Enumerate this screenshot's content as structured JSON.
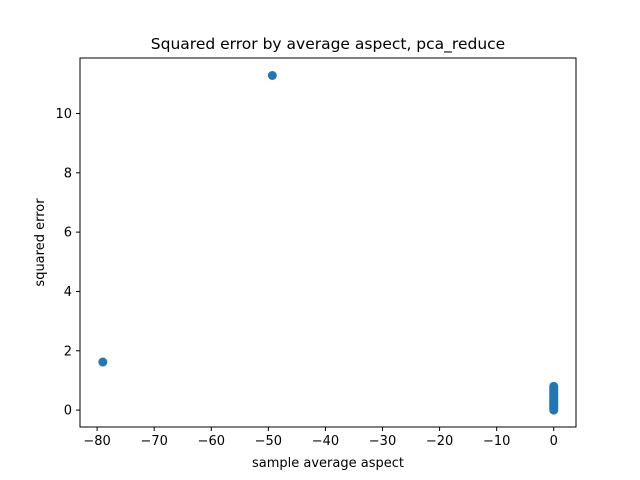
{
  "chart_data": {
    "type": "scatter",
    "title": "Squared error by average aspect, pca_reduce",
    "xlabel": "sample average aspect",
    "ylabel": "squared error",
    "xlim": [
      -83,
      3.9
    ],
    "ylim": [
      -0.57,
      11.87
    ],
    "xticks": [
      -80,
      -70,
      -60,
      -50,
      -40,
      -30,
      -20,
      -10,
      0
    ],
    "xtick_labels": [
      "−80",
      "−70",
      "−60",
      "−50",
      "−40",
      "−30",
      "−20",
      "−10",
      "0"
    ],
    "yticks": [
      0,
      2,
      4,
      6,
      8,
      10
    ],
    "ytick_labels": [
      "0",
      "2",
      "4",
      "6",
      "8",
      "10"
    ],
    "grid": false,
    "marker_color": "#1f77b4",
    "points": [
      {
        "x": -79,
        "y": 1.62
      },
      {
        "x": -49.3,
        "y": 11.28
      },
      {
        "x": 0,
        "y": 0.0
      },
      {
        "x": 0,
        "y": 0.05
      },
      {
        "x": 0,
        "y": 0.1
      },
      {
        "x": 0,
        "y": 0.15
      },
      {
        "x": 0,
        "y": 0.2
      },
      {
        "x": 0,
        "y": 0.25
      },
      {
        "x": 0,
        "y": 0.3
      },
      {
        "x": 0,
        "y": 0.35
      },
      {
        "x": 0,
        "y": 0.4
      },
      {
        "x": 0,
        "y": 0.45
      },
      {
        "x": 0,
        "y": 0.5
      },
      {
        "x": 0,
        "y": 0.55
      },
      {
        "x": 0,
        "y": 0.6
      },
      {
        "x": 0,
        "y": 0.65
      },
      {
        "x": 0,
        "y": 0.7
      },
      {
        "x": 0,
        "y": 0.75
      },
      {
        "x": 0,
        "y": 0.8
      }
    ]
  }
}
